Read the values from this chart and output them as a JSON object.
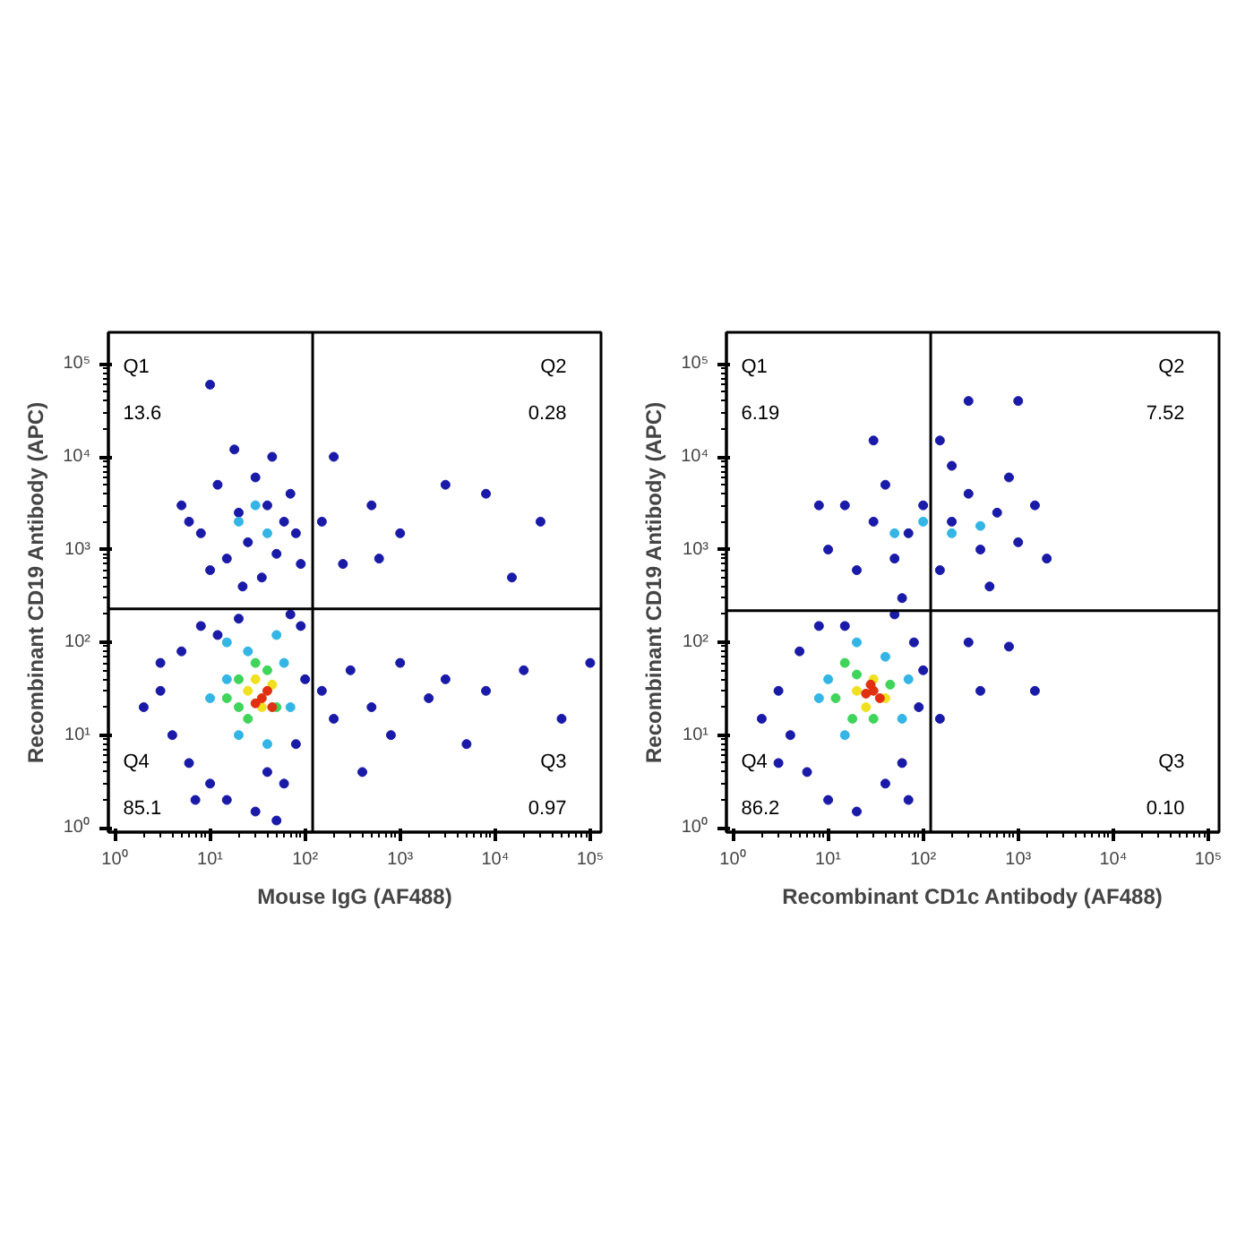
{
  "chart_data": [
    {
      "type": "scatter",
      "xlabel": "Mouse IgG (AF488)",
      "ylabel": "Recombinant CD19 Antibody (APC)",
      "log": "xy",
      "grid": false,
      "marker": "circle",
      "xlim": [
        0.85,
        130000
      ],
      "ylim": [
        0.9,
        220000
      ],
      "xticks": [
        {
          "value": 1,
          "label": "10⁰"
        },
        {
          "value": 10,
          "label": "10¹"
        },
        {
          "value": 100,
          "label": "10²"
        },
        {
          "value": 1000,
          "label": "10³"
        },
        {
          "value": 10000,
          "label": "10⁴"
        },
        {
          "value": 100000,
          "label": "10⁵"
        }
      ],
      "yticks": [
        {
          "value": 1,
          "label": "10⁰"
        },
        {
          "value": 10,
          "label": "10¹"
        },
        {
          "value": 100,
          "label": "10²"
        },
        {
          "value": 1000,
          "label": "10³"
        },
        {
          "value": 10000,
          "label": "10⁴"
        },
        {
          "value": 100000,
          "label": "10⁵"
        }
      ],
      "ref_lines": [
        {
          "axis": "x",
          "value": 120,
          "color": "#000000"
        },
        {
          "axis": "y",
          "value": 230,
          "color": "#000000"
        }
      ],
      "annotations": [
        "Q1",
        "13.6",
        "Q2",
        "0.28",
        "Q4",
        "85.1",
        "Q3",
        "0.97"
      ],
      "series": [
        {
          "color": "#1a1aa8",
          "x": [
            5,
            8,
            12,
            15,
            20,
            25,
            30,
            40,
            50,
            60,
            70,
            80,
            10,
            35,
            18,
            10,
            45,
            90,
            6,
            22,
            3,
            4,
            5,
            6,
            8,
            10,
            12,
            15,
            20,
            30,
            40,
            60,
            80,
            90,
            2,
            70,
            50,
            3,
            100,
            7,
            150,
            200,
            300,
            500,
            800,
            1000,
            2000,
            3000,
            5000,
            8000,
            20000,
            50000,
            100000,
            400,
            150,
            250,
            500,
            1000,
            3000,
            8000,
            30000,
            15000,
            200,
            600
          ],
          "values": [
            3000,
            1500,
            5000,
            800,
            2500,
            1200,
            6000,
            3000,
            900,
            2000,
            4000,
            1500,
            600,
            500,
            12000,
            60000,
            10000,
            700,
            2000,
            400,
            30,
            10,
            80,
            5,
            150,
            3,
            120,
            2,
            180,
            1.5,
            4,
            3,
            8,
            150,
            20,
            200,
            1.2,
            60,
            40,
            2,
            30,
            15,
            50,
            20,
            10,
            60,
            25,
            40,
            8,
            30,
            50,
            15,
            60,
            4,
            2000,
            700,
            3000,
            1500,
            5000,
            4000,
            2000,
            500,
            10000,
            800
          ]
        },
        {
          "color": "#33b5e5",
          "x": [
            15,
            20,
            25,
            40,
            60,
            10,
            30,
            40,
            20,
            70,
            15,
            50
          ],
          "values": [
            40,
            10,
            80,
            8,
            60,
            25,
            3000,
            1500,
            2000,
            20,
            100,
            120
          ]
        },
        {
          "color": "#3fd45a",
          "x": [
            15,
            20,
            25,
            40,
            50,
            30,
            20
          ],
          "values": [
            25,
            40,
            15,
            50,
            20,
            60,
            20
          ]
        },
        {
          "color": "#f0e020",
          "x": [
            25,
            35,
            45,
            30
          ],
          "values": [
            30,
            20,
            35,
            40
          ]
        },
        {
          "color": "#e03010",
          "x": [
            35,
            40,
            30,
            45
          ],
          "values": [
            25,
            30,
            22,
            20
          ]
        }
      ]
    },
    {
      "type": "scatter",
      "xlabel": "Recombinant CD1c Antibody (AF488)",
      "ylabel": "Recombinant CD19 Antibody (APC)",
      "log": "xy",
      "grid": false,
      "marker": "circle",
      "xlim": [
        0.85,
        130000
      ],
      "ylim": [
        0.9,
        220000
      ],
      "xticks": [
        {
          "value": 1,
          "label": "10⁰"
        },
        {
          "value": 10,
          "label": "10¹"
        },
        {
          "value": 100,
          "label": "10²"
        },
        {
          "value": 1000,
          "label": "10³"
        },
        {
          "value": 10000,
          "label": "10⁴"
        },
        {
          "value": 100000,
          "label": "10⁵"
        }
      ],
      "yticks": [
        {
          "value": 1,
          "label": "10⁰"
        },
        {
          "value": 10,
          "label": "10¹"
        },
        {
          "value": 100,
          "label": "10²"
        },
        {
          "value": 1000,
          "label": "10³"
        },
        {
          "value": 10000,
          "label": "10⁴"
        },
        {
          "value": 100000,
          "label": "10⁵"
        }
      ],
      "ref_lines": [
        {
          "axis": "x",
          "value": 120,
          "color": "#000000"
        },
        {
          "axis": "y",
          "value": 220,
          "color": "#000000"
        }
      ],
      "annotations": [
        "Q1",
        "6.19",
        "Q2",
        "7.52",
        "Q4",
        "86.2",
        "Q3",
        "0.10"
      ],
      "series": [
        {
          "color": "#1a1aa8",
          "x": [
            10,
            15,
            20,
            30,
            40,
            50,
            70,
            100,
            150,
            200,
            300,
            400,
            600,
            800,
            1000,
            1500,
            2000,
            200,
            500,
            60,
            300,
            150,
            1000,
            30,
            8,
            3,
            4,
            5,
            6,
            8,
            10,
            15,
            20,
            40,
            60,
            80,
            90,
            2,
            3,
            50,
            70,
            100,
            300,
            400,
            1500,
            150,
            800
          ],
          "values": [
            1000,
            3000,
            600,
            2000,
            5000,
            800,
            1500,
            3000,
            600,
            2000,
            4000,
            1000,
            2500,
            6000,
            1200,
            3000,
            800,
            8000,
            400,
            300,
            40000,
            15000,
            40000,
            15000,
            3000,
            30,
            10,
            80,
            4,
            150,
            2,
            150,
            1.5,
            3,
            5,
            100,
            20,
            15,
            5,
            200,
            2,
            50,
            100,
            30,
            30,
            15,
            90
          ]
        },
        {
          "color": "#33b5e5",
          "x": [
            10,
            15,
            40,
            60,
            20,
            100,
            200,
            50,
            400,
            8,
            70
          ],
          "values": [
            40,
            10,
            70,
            15,
            100,
            2000,
            1500,
            1500,
            1800,
            25,
            40
          ]
        },
        {
          "color": "#3fd45a",
          "x": [
            12,
            20,
            30,
            45,
            18,
            15
          ],
          "values": [
            25,
            45,
            15,
            35,
            15,
            60
          ]
        },
        {
          "color": "#f0e020",
          "x": [
            20,
            30,
            40,
            25
          ],
          "values": [
            30,
            40,
            25,
            20
          ]
        },
        {
          "color": "#e03010",
          "x": [
            25,
            30,
            35,
            28
          ],
          "values": [
            28,
            30,
            25,
            35
          ]
        }
      ]
    }
  ]
}
